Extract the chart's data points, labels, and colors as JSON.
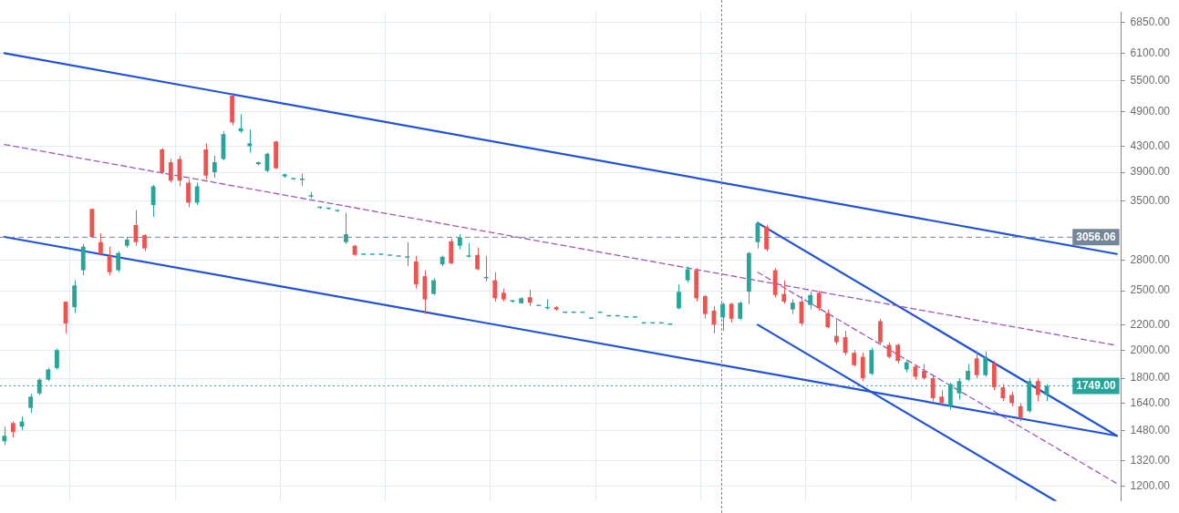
{
  "chart_data": {
    "type": "candlestick",
    "categories": [
      null,
      null,
      null,
      null,
      null,
      null,
      null,
      null,
      null,
      null,
      null,
      null,
      null,
      null,
      null,
      null,
      null,
      null,
      null,
      null,
      null,
      null,
      null,
      null,
      null,
      null,
      null,
      null,
      null,
      null,
      null,
      null,
      null,
      null,
      null,
      null,
      null,
      null,
      null,
      null,
      null,
      null,
      null,
      null,
      null,
      null,
      null,
      null,
      null,
      null,
      null,
      null,
      null,
      null,
      null,
      null,
      null,
      null,
      null,
      null,
      null,
      null,
      null,
      null,
      null,
      null,
      null,
      null,
      null,
      null,
      null,
      null,
      null,
      null,
      null,
      null,
      null,
      null,
      null,
      null,
      null,
      null,
      null,
      null,
      null,
      null,
      null,
      null,
      null,
      null,
      null,
      null,
      null,
      null,
      null,
      null,
      null,
      null,
      null,
      null,
      null,
      null,
      null,
      null,
      null,
      null,
      null,
      null,
      null,
      null,
      null,
      null,
      null,
      null,
      null,
      null,
      null,
      null,
      null,
      null,
      null,
      null,
      null,
      null,
      null,
      null,
      null,
      null
    ],
    "ohlc": [
      [
        1420,
        1500,
        1400,
        1450
      ],
      [
        1520,
        1530,
        1440,
        1470
      ],
      [
        1500,
        1560,
        1480,
        1530
      ],
      [
        1610,
        1700,
        1580,
        1680
      ],
      [
        1700,
        1800,
        1690,
        1790
      ],
      [
        1790,
        1870,
        1780,
        1860
      ],
      [
        1870,
        2010,
        1860,
        2000
      ],
      [
        2400,
        2400,
        2130,
        2210
      ],
      [
        2350,
        2600,
        2300,
        2550
      ],
      [
        2700,
        2980,
        2650,
        2950
      ],
      [
        3400,
        3400,
        3050,
        3060
      ],
      [
        3000,
        3100,
        2850,
        2880
      ],
      [
        2850,
        2950,
        2650,
        2680
      ],
      [
        2700,
        2900,
        2680,
        2880
      ],
      [
        2960,
        3060,
        2940,
        3030
      ],
      [
        3200,
        3380,
        2960,
        3000
      ],
      [
        3080,
        3090,
        2900,
        2930
      ],
      [
        3450,
        3720,
        3300,
        3700
      ],
      [
        4250,
        4270,
        3880,
        3900
      ],
      [
        4050,
        4100,
        3750,
        3780
      ],
      [
        4100,
        4150,
        3700,
        3780
      ],
      [
        3750,
        3800,
        3420,
        3480
      ],
      [
        3480,
        3750,
        3450,
        3700
      ],
      [
        4250,
        4350,
        3800,
        3850
      ],
      [
        3900,
        4150,
        3820,
        4050
      ],
      [
        4100,
        4550,
        4080,
        4500
      ],
      [
        5200,
        5230,
        4650,
        4700
      ],
      [
        4550,
        4850,
        4520,
        4600
      ],
      [
        4300,
        4580,
        4200,
        4350
      ],
      [
        4020,
        4060,
        4000,
        4050
      ],
      [
        3920,
        4200,
        3900,
        4180
      ],
      [
        4380,
        4390,
        3950,
        3960
      ],
      [
        3840,
        3880,
        3820,
        3870
      ],
      [
        3800,
        3810,
        3790,
        3805
      ],
      [
        3790,
        3880,
        3700,
        3800
      ],
      [
        3560,
        3620,
        3540,
        3570
      ],
      [
        3410,
        3430,
        3400,
        3420
      ],
      [
        3400,
        3410,
        3390,
        3405
      ],
      [
        3370,
        3380,
        3360,
        3375
      ],
      [
        3000,
        3350,
        2980,
        3090
      ],
      [
        2960,
        2970,
        2850,
        2860
      ],
      [
        2860,
        2860,
        2860,
        2860
      ],
      [
        2860,
        2860,
        2860,
        2860
      ],
      [
        2860,
        2860,
        2860,
        2860
      ],
      [
        2850,
        2850,
        2850,
        2850
      ],
      [
        2840,
        2840,
        2840,
        2840
      ],
      [
        2830,
        3000,
        2740,
        2840
      ],
      [
        2790,
        2850,
        2520,
        2560
      ],
      [
        2640,
        2700,
        2290,
        2420
      ],
      [
        2470,
        2620,
        2460,
        2600
      ],
      [
        2760,
        2850,
        2740,
        2840
      ],
      [
        3010,
        3040,
        2760,
        2770
      ],
      [
        2960,
        3090,
        2920,
        3050
      ],
      [
        2840,
        2990,
        2830,
        2850
      ],
      [
        2860,
        2940,
        2700,
        2710
      ],
      [
        2620,
        2850,
        2590,
        2630
      ],
      [
        2600,
        2680,
        2400,
        2430
      ],
      [
        2480,
        2520,
        2400,
        2420
      ],
      [
        2400,
        2410,
        2390,
        2405
      ],
      [
        2385,
        2440,
        2380,
        2430
      ],
      [
        2440,
        2510,
        2360,
        2390
      ],
      [
        2360,
        2360,
        2360,
        2360
      ],
      [
        2340,
        2420,
        2330,
        2345
      ],
      [
        2350,
        2360,
        2320,
        2330
      ],
      [
        2300,
        2300,
        2300,
        2300
      ],
      [
        2300,
        2300,
        2300,
        2300
      ],
      [
        2300,
        2300,
        2300,
        2300
      ],
      [
        2250,
        2250,
        2250,
        2250
      ],
      [
        2300,
        2300,
        2300,
        2300
      ],
      [
        2270,
        2270,
        2270,
        2270
      ],
      [
        2270,
        2270,
        2270,
        2270
      ],
      [
        2260,
        2260,
        2260,
        2260
      ],
      [
        2260,
        2260,
        2260,
        2260
      ],
      [
        2210,
        2210,
        2210,
        2210
      ],
      [
        2210,
        2210,
        2210,
        2210
      ],
      [
        2210,
        2210,
        2210,
        2210
      ],
      [
        2200,
        2200,
        2200,
        2200
      ],
      [
        2340,
        2560,
        2330,
        2490
      ],
      [
        2600,
        2740,
        2580,
        2710
      ],
      [
        2700,
        2720,
        2400,
        2430
      ],
      [
        2450,
        2460,
        2250,
        2290
      ],
      [
        2320,
        2360,
        2130,
        2200
      ],
      [
        2260,
        2390,
        2150,
        2380
      ],
      [
        2380,
        2390,
        2220,
        2250
      ],
      [
        2250,
        2400,
        2240,
        2390
      ],
      [
        2490,
        2890,
        2380,
        2880
      ],
      [
        3000,
        3240,
        2930,
        3220
      ],
      [
        3180,
        3200,
        2900,
        2920
      ],
      [
        2700,
        2720,
        2440,
        2460
      ],
      [
        2470,
        2600,
        2380,
        2400
      ],
      [
        2330,
        2420,
        2290,
        2390
      ],
      [
        2400,
        2450,
        2190,
        2210
      ],
      [
        2370,
        2490,
        2330,
        2460
      ],
      [
        2480,
        2500,
        2320,
        2340
      ],
      [
        2300,
        2330,
        2170,
        2180
      ],
      [
        2110,
        2240,
        2040,
        2060
      ],
      [
        2100,
        2150,
        1960,
        1980
      ],
      [
        1980,
        2000,
        1880,
        1890
      ],
      [
        1950,
        1980,
        1780,
        1800
      ],
      [
        1830,
        2020,
        1820,
        2000
      ],
      [
        2230,
        2250,
        2050,
        2060
      ],
      [
        2040,
        2060,
        1940,
        1950
      ],
      [
        2040,
        2050,
        1900,
        1920
      ],
      [
        1860,
        1920,
        1840,
        1910
      ],
      [
        1880,
        1890,
        1790,
        1810
      ],
      [
        1850,
        1900,
        1790,
        1800
      ],
      [
        1800,
        1820,
        1650,
        1670
      ],
      [
        1680,
        1720,
        1620,
        1640
      ],
      [
        1620,
        1770,
        1600,
        1760
      ],
      [
        1700,
        1800,
        1660,
        1780
      ],
      [
        1790,
        1900,
        1780,
        1850
      ],
      [
        1940,
        1990,
        1800,
        1820
      ],
      [
        1820,
        1990,
        1810,
        1950
      ],
      [
        1900,
        1920,
        1720,
        1740
      ],
      [
        1740,
        1760,
        1650,
        1670
      ],
      [
        1690,
        1710,
        1620,
        1640
      ],
      [
        1620,
        1640,
        1530,
        1550
      ],
      [
        1590,
        1800,
        1580,
        1780
      ],
      [
        1780,
        1800,
        1650,
        1690
      ],
      [
        1690,
        1760,
        1650,
        1749
      ],
      null,
      null,
      null,
      null,
      null,
      null,
      null,
      null
    ],
    "colors": [
      "#26a69a",
      "#ef5350",
      "#26a69a",
      "#26a69a",
      "#26a69a",
      "#26a69a",
      "#26a69a",
      "#ef5350",
      "#26a69a",
      "#26a69a",
      "#ef5350",
      "#ef5350",
      "#ef5350",
      "#26a69a",
      "#26a69a",
      "#ef5350",
      "#ef5350",
      "#26a69a",
      "#ef5350",
      "#ef5350",
      "#ef5350",
      "#ef5350",
      "#26a69a",
      "#ef5350",
      "#26a69a",
      "#26a69a",
      "#ef5350",
      "#26a69a",
      "#26a69a",
      "#26a69a",
      "#26a69a",
      "#ef5350",
      "#26a69a",
      "#26a69a",
      "#26a69a",
      "#26a69a",
      "#26a69a",
      "#26a69a",
      "#26a69a",
      "#26a69a",
      "#ef5350",
      "#26a69a",
      "#26a69a",
      "#26a69a",
      "#26a69a",
      "#26a69a",
      "#26a69a",
      "#ef5350",
      "#ef5350",
      "#26a69a",
      "#26a69a",
      "#ef5350",
      "#26a69a",
      "#26a69a",
      "#ef5350",
      "#26a69a",
      "#ef5350",
      "#ef5350",
      "#26a69a",
      "#26a69a",
      "#ef5350",
      "#26a69a",
      "#26a69a",
      "#ef5350",
      "#26a69a",
      "#26a69a",
      "#26a69a",
      "#26a69a",
      "#26a69a",
      "#26a69a",
      "#26a69a",
      "#26a69a",
      "#26a69a",
      "#26a69a",
      "#26a69a",
      "#26a69a",
      "#26a69a",
      "#26a69a",
      "#26a69a",
      "#ef5350",
      "#ef5350",
      "#ef5350",
      "#26a69a",
      "#ef5350",
      "#26a69a",
      "#26a69a",
      "#26a69a",
      "#ef5350",
      "#ef5350",
      "#ef5350",
      "#26a69a",
      "#ef5350",
      "#26a69a",
      "#ef5350",
      "#ef5350",
      "#ef5350",
      "#ef5350",
      "#ef5350",
      "#ef5350",
      "#26a69a",
      "#ef5350",
      "#ef5350",
      "#ef5350",
      "#26a69a",
      "#ef5350",
      "#ef5350",
      "#ef5350",
      "#ef5350",
      "#26a69a",
      "#26a69a",
      "#26a69a",
      "#ef5350",
      "#26a69a",
      "#ef5350",
      "#ef5350",
      "#ef5350",
      "#ef5350",
      "#26a69a",
      "#ef5350",
      "#26a69a",
      null,
      null,
      null,
      null,
      null,
      null,
      null,
      null
    ],
    "series": [
      {
        "type": "line",
        "color": "#1f52d6",
        "line_style": "solid",
        "values": [
          6100,
          null,
          null,
          null,
          null,
          null,
          null,
          null,
          null,
          null,
          null,
          null,
          null,
          null,
          null,
          null,
          null,
          null,
          null,
          null,
          null,
          null,
          null,
          null,
          null,
          null,
          null,
          null,
          null,
          null,
          null,
          null,
          null,
          null,
          null,
          null,
          null,
          null,
          null,
          null,
          null,
          null,
          null,
          null,
          null,
          null,
          null,
          null,
          null,
          null,
          null,
          null,
          null,
          null,
          null,
          null,
          null,
          null,
          null,
          null,
          null,
          null,
          null,
          null,
          null,
          null,
          null,
          null,
          null,
          null,
          null,
          null,
          null,
          null,
          null,
          null,
          null,
          null,
          null,
          null,
          null,
          null,
          null,
          null,
          null,
          null,
          null,
          null,
          null,
          null,
          null,
          null,
          null,
          null,
          null,
          null,
          null,
          null,
          null,
          null,
          null,
          null,
          null,
          null,
          null,
          null,
          null,
          null,
          null,
          null,
          null,
          null,
          null,
          null,
          null,
          null,
          null,
          null,
          null,
          null,
          null,
          null,
          null,
          null,
          null,
          null,
          null,
          2870
        ]
      },
      {
        "type": "line",
        "color": "#1f52d6",
        "line_style": "solid",
        "values": [
          3060,
          null,
          null,
          null,
          null,
          null,
          null,
          null,
          null,
          null,
          null,
          null,
          null,
          null,
          null,
          null,
          null,
          null,
          null,
          null,
          null,
          null,
          null,
          null,
          null,
          null,
          null,
          null,
          null,
          null,
          null,
          null,
          null,
          null,
          null,
          null,
          null,
          null,
          null,
          null,
          null,
          null,
          null,
          null,
          null,
          null,
          null,
          null,
          null,
          null,
          null,
          null,
          null,
          null,
          null,
          null,
          null,
          null,
          null,
          null,
          null,
          null,
          null,
          null,
          null,
          null,
          null,
          null,
          null,
          null,
          null,
          null,
          null,
          null,
          null,
          null,
          null,
          null,
          null,
          null,
          null,
          null,
          null,
          null,
          null,
          null,
          null,
          null,
          null,
          null,
          null,
          null,
          null,
          null,
          null,
          null,
          null,
          null,
          null,
          null,
          null,
          null,
          null,
          null,
          null,
          null,
          null,
          null,
          null,
          null,
          null,
          null,
          null,
          null,
          null,
          null,
          null,
          null,
          null,
          null,
          null,
          null,
          null,
          null,
          null,
          null,
          null,
          1450
        ]
      },
      {
        "type": "line",
        "color": "#9b59b6",
        "line_style": "dashed",
        "values": [
          4330,
          null,
          null,
          null,
          null,
          null,
          null,
          null,
          null,
          null,
          null,
          null,
          null,
          null,
          null,
          null,
          null,
          null,
          null,
          null,
          null,
          null,
          null,
          null,
          null,
          null,
          null,
          null,
          null,
          null,
          null,
          null,
          null,
          null,
          null,
          null,
          null,
          null,
          null,
          null,
          null,
          null,
          null,
          null,
          null,
          null,
          null,
          null,
          null,
          null,
          null,
          null,
          null,
          null,
          null,
          null,
          null,
          null,
          null,
          null,
          null,
          null,
          null,
          null,
          null,
          null,
          null,
          null,
          null,
          null,
          null,
          null,
          null,
          null,
          null,
          null,
          null,
          null,
          null,
          null,
          null,
          null,
          null,
          null,
          null,
          null,
          null,
          null,
          null,
          null,
          null,
          null,
          null,
          null,
          null,
          null,
          null,
          null,
          null,
          null,
          null,
          null,
          null,
          null,
          null,
          null,
          null,
          null,
          null,
          null,
          null,
          null,
          null,
          null,
          null,
          null,
          null,
          null,
          null,
          null,
          null,
          null,
          null,
          null,
          null,
          null,
          null,
          2035
        ]
      },
      {
        "type": "line",
        "color": "#1f52d6",
        "line_style": "solid",
        "values": [
          null,
          null,
          null,
          null,
          null,
          null,
          null,
          null,
          null,
          null,
          null,
          null,
          null,
          null,
          null,
          null,
          null,
          null,
          null,
          null,
          null,
          null,
          null,
          null,
          null,
          null,
          null,
          null,
          null,
          null,
          null,
          null,
          null,
          null,
          null,
          null,
          null,
          null,
          null,
          null,
          null,
          null,
          null,
          null,
          null,
          null,
          null,
          null,
          null,
          null,
          null,
          null,
          null,
          null,
          null,
          null,
          null,
          null,
          null,
          null,
          null,
          null,
          null,
          null,
          null,
          null,
          null,
          null,
          null,
          null,
          null,
          null,
          null,
          null,
          null,
          null,
          null,
          null,
          null,
          null,
          null,
          null,
          null,
          null,
          null,
          null,
          3225,
          null,
          null,
          null,
          null,
          null,
          null,
          null,
          null,
          null,
          null,
          null,
          null,
          null,
          null,
          null,
          null,
          null,
          null,
          null,
          null,
          null,
          null,
          null,
          null,
          null,
          null,
          null,
          null,
          null,
          null,
          null,
          null,
          null,
          null,
          null,
          null,
          null,
          null,
          null,
          null,
          1450
        ]
      },
      {
        "type": "line",
        "color": "#1f52d6",
        "line_style": "solid",
        "values": [
          null,
          null,
          null,
          null,
          null,
          null,
          null,
          null,
          null,
          null,
          null,
          null,
          null,
          null,
          null,
          null,
          null,
          null,
          null,
          null,
          null,
          null,
          null,
          null,
          null,
          null,
          null,
          null,
          null,
          null,
          null,
          null,
          null,
          null,
          null,
          null,
          null,
          null,
          null,
          null,
          null,
          null,
          null,
          null,
          null,
          null,
          null,
          null,
          null,
          null,
          null,
          null,
          null,
          null,
          null,
          null,
          null,
          null,
          null,
          null,
          null,
          null,
          null,
          null,
          null,
          null,
          null,
          null,
          null,
          null,
          null,
          null,
          null,
          null,
          null,
          null,
          null,
          null,
          null,
          null,
          null,
          null,
          null,
          null,
          null,
          null,
          2200,
          null,
          null,
          null,
          null,
          null,
          null,
          null,
          null,
          null,
          null,
          null,
          null,
          null,
          null,
          null,
          null,
          null,
          null,
          null,
          null,
          null,
          null,
          null,
          null,
          null,
          null,
          null,
          null,
          null,
          null,
          null,
          null,
          null,
          1135,
          null,
          null,
          null,
          null,
          null,
          null,
          null
        ]
      },
      {
        "type": "line",
        "color": "#9b59b6",
        "line_style": "dashed",
        "values": [
          null,
          null,
          null,
          null,
          null,
          null,
          null,
          null,
          null,
          null,
          null,
          null,
          null,
          null,
          null,
          null,
          null,
          null,
          null,
          null,
          null,
          null,
          null,
          null,
          null,
          null,
          null,
          null,
          null,
          null,
          null,
          null,
          null,
          null,
          null,
          null,
          null,
          null,
          null,
          null,
          null,
          null,
          null,
          null,
          null,
          null,
          null,
          null,
          null,
          null,
          null,
          null,
          null,
          null,
          null,
          null,
          null,
          null,
          null,
          null,
          null,
          null,
          null,
          null,
          null,
          null,
          null,
          null,
          null,
          null,
          null,
          null,
          null,
          null,
          null,
          null,
          null,
          null,
          null,
          null,
          null,
          null,
          null,
          null,
          null,
          null,
          2680,
          null,
          null,
          null,
          null,
          null,
          null,
          null,
          null,
          null,
          null,
          null,
          null,
          null,
          null,
          null,
          null,
          null,
          null,
          null,
          null,
          null,
          null,
          null,
          null,
          null,
          null,
          null,
          null,
          null,
          null,
          null,
          null,
          null,
          null,
          null,
          null,
          null,
          null,
          null,
          null,
          1212
        ]
      }
    ],
    "ref_lines": [
      {
        "axis": "y",
        "value": 3056.06,
        "label": "3056.06",
        "color": "#758696",
        "line_style": "dashed"
      },
      {
        "axis": "y",
        "value": 1749,
        "label": "1749.00",
        "color": "#26a69a",
        "line_style": "dotted"
      }
    ],
    "log": "y",
    "ylim": [
      1135,
      7120
    ],
    "yticks": [
      {
        "value": 1200,
        "label": "1200.00"
      },
      {
        "value": 1320,
        "label": "1320.00"
      },
      {
        "value": 1480,
        "label": "1480.00"
      },
      {
        "value": 1640,
        "label": "1640.00"
      },
      {
        "value": 1800,
        "label": "1800.00"
      },
      {
        "value": 2000,
        "label": "2000.00"
      },
      {
        "value": 2200,
        "label": "2200.00"
      },
      {
        "value": 2500,
        "label": "2500.00"
      },
      {
        "value": 2800,
        "label": "2800.00"
      },
      {
        "value": 3500,
        "label": "3500.00"
      },
      {
        "value": 3900,
        "label": "3900.00"
      },
      {
        "value": 4300,
        "label": "4300.00"
      },
      {
        "value": 4900,
        "label": "4900.00"
      },
      {
        "value": 5500,
        "label": "5500.00"
      },
      {
        "value": 6100,
        "label": "6100.00"
      },
      {
        "value": 6850,
        "label": "6850.00"
      }
    ],
    "grid": true,
    "legend": false,
    "tick_labels": "y",
    "marker": "none"
  }
}
